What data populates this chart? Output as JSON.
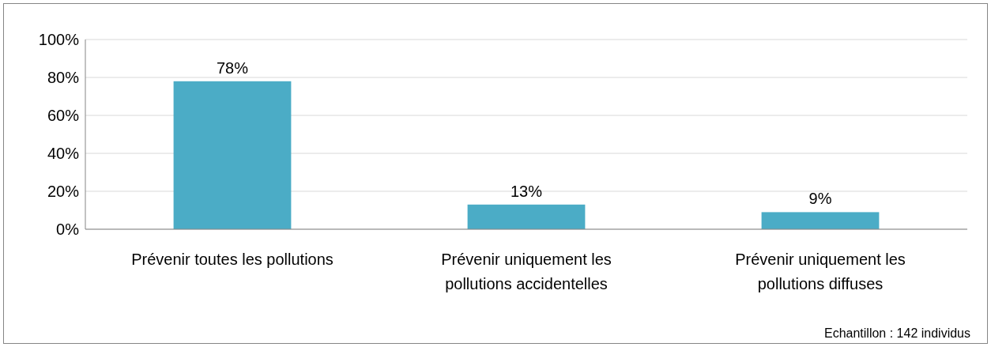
{
  "chart_data": {
    "type": "bar",
    "categories": [
      "Prévenir toutes les pollutions",
      "Prévenir uniquement les pollutions accidentelles",
      "Prévenir uniquement les pollutions diffuses"
    ],
    "values": [
      78,
      13,
      9
    ],
    "value_labels": [
      "78%",
      "13%",
      "9%"
    ],
    "color": "#4bacc6",
    "ylim": [
      0,
      100
    ],
    "yticks": [
      {
        "value": 0,
        "label": "0%"
      },
      {
        "value": 20,
        "label": "20%"
      },
      {
        "value": 40,
        "label": "40%"
      },
      {
        "value": 60,
        "label": "60%"
      },
      {
        "value": 80,
        "label": "80%"
      },
      {
        "value": 100,
        "label": "100%"
      }
    ],
    "grid": "y",
    "annotations": [
      "Echantillon : 142 individus"
    ]
  }
}
